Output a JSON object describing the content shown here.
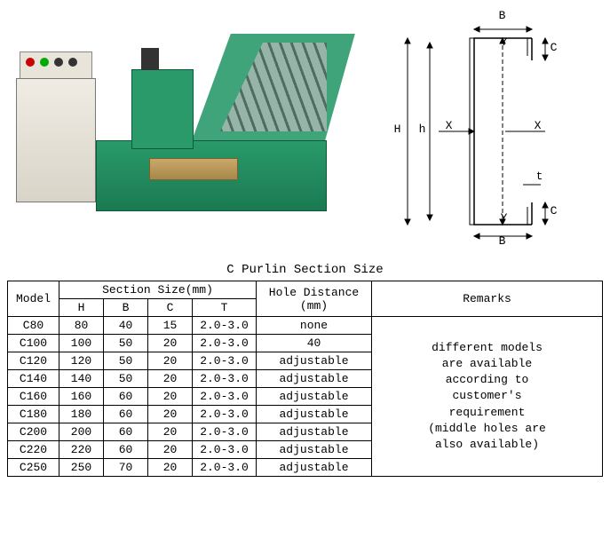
{
  "title": "C Purlin Section Size",
  "diagram": {
    "labels": {
      "B": "B",
      "Y": "Y",
      "C": "C",
      "H": "H",
      "h": "h",
      "X": "X",
      "t": "t"
    }
  },
  "table": {
    "headers": {
      "model": "Model",
      "section": "Section Size(mm)",
      "H": "H",
      "B": "B",
      "C": "C",
      "T": "T",
      "hole": "Hole Distance\n(mm)",
      "remarks": "Remarks"
    },
    "rows": [
      {
        "model": "C80",
        "H": "80",
        "B": "40",
        "C": "15",
        "T": "2.0-3.0",
        "hole": "none"
      },
      {
        "model": "C100",
        "H": "100",
        "B": "50",
        "C": "20",
        "T": "2.0-3.0",
        "hole": "40"
      },
      {
        "model": "C120",
        "H": "120",
        "B": "50",
        "C": "20",
        "T": "2.0-3.0",
        "hole": "adjustable"
      },
      {
        "model": "C140",
        "H": "140",
        "B": "50",
        "C": "20",
        "T": "2.0-3.0",
        "hole": "adjustable"
      },
      {
        "model": "C160",
        "H": "160",
        "B": "60",
        "C": "20",
        "T": "2.0-3.0",
        "hole": "adjustable"
      },
      {
        "model": "C180",
        "H": "180",
        "B": "60",
        "C": "20",
        "T": "2.0-3.0",
        "hole": "adjustable"
      },
      {
        "model": "C200",
        "H": "200",
        "B": "60",
        "C": "20",
        "T": "2.0-3.0",
        "hole": "adjustable"
      },
      {
        "model": "C220",
        "H": "220",
        "B": "60",
        "C": "20",
        "T": "2.0-3.0",
        "hole": "adjustable"
      },
      {
        "model": "C250",
        "H": "250",
        "B": "70",
        "C": "20",
        "T": "2.0-3.0",
        "hole": "adjustable"
      }
    ],
    "remarks_text": "different models\nare available\naccording to\ncustomer's\nrequirement\n(middle holes are\nalso available)"
  }
}
